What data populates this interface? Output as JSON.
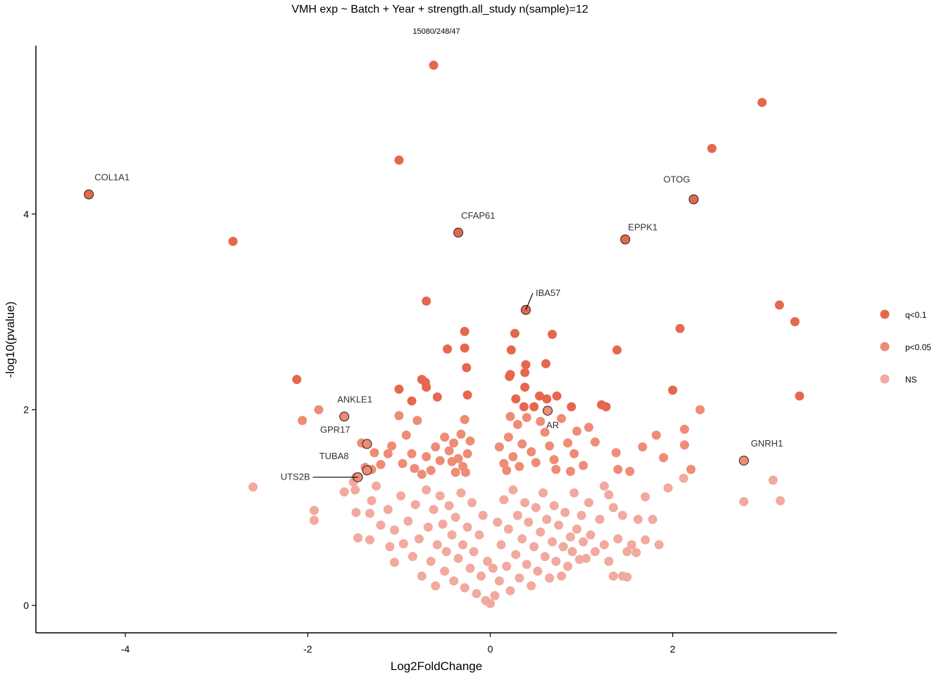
{
  "chart_data": {
    "type": "scatter",
    "title": "VMH exp ~ Batch + Year + strength.all_study n(sample)=12",
    "subtitle": "15080/248/47",
    "xlabel": "Log2FoldChange",
    "ylabel": "-log10(pvalue)",
    "xlim": [
      -4.98,
      3.8
    ],
    "ylim": [
      -0.28,
      5.72
    ],
    "xticks": [
      -4,
      -2,
      0,
      2
    ],
    "yticks": [
      0,
      2,
      4
    ],
    "grid": false,
    "legend_position": "right",
    "colors": {
      "q<0.1": "#E5674E",
      "p<0.05": "#EE8C75",
      "NS": "#F2A99E",
      "outline": "#222222"
    },
    "series": [
      {
        "name": "q<0.1",
        "points": [
          [
            -4.4,
            4.2
          ],
          [
            -2.82,
            3.72
          ],
          [
            -0.62,
            5.52
          ],
          [
            -1.0,
            4.55
          ],
          [
            -0.35,
            3.81
          ],
          [
            -0.7,
            3.11
          ],
          [
            -0.28,
            2.8
          ],
          [
            -0.28,
            2.63
          ],
          [
            -0.47,
            2.62
          ],
          [
            -0.26,
            2.43
          ],
          [
            -0.25,
            2.15
          ],
          [
            -0.58,
            2.13
          ],
          [
            -0.75,
            2.31
          ],
          [
            -0.71,
            2.28
          ],
          [
            -0.7,
            2.23
          ],
          [
            -0.86,
            2.09
          ],
          [
            -2.12,
            2.31
          ],
          [
            -1.0,
            2.21
          ],
          [
            0.27,
            2.78
          ],
          [
            0.39,
            3.02
          ],
          [
            0.68,
            2.77
          ],
          [
            0.61,
            2.47
          ],
          [
            0.23,
            2.61
          ],
          [
            0.39,
            2.46
          ],
          [
            0.38,
            2.38
          ],
          [
            0.21,
            2.34
          ],
          [
            0.22,
            2.36
          ],
          [
            0.38,
            2.23
          ],
          [
            0.54,
            2.14
          ],
          [
            0.73,
            2.14
          ],
          [
            0.28,
            2.11
          ],
          [
            0.62,
            2.11
          ],
          [
            0.48,
            2.03
          ],
          [
            0.37,
            2.03
          ],
          [
            0.89,
            2.03
          ],
          [
            1.22,
            2.05
          ],
          [
            1.27,
            2.03
          ],
          [
            1.39,
            2.61
          ],
          [
            1.48,
            3.74
          ],
          [
            2.23,
            4.15
          ],
          [
            2.43,
            4.67
          ],
          [
            2.98,
            5.14
          ],
          [
            2.08,
            2.83
          ],
          [
            2.0,
            2.2
          ],
          [
            3.17,
            3.07
          ],
          [
            3.34,
            2.9
          ],
          [
            3.39,
            2.14
          ]
        ]
      },
      {
        "name": "p<0.05",
        "points": [
          [
            -1.88,
            2.0
          ],
          [
            -2.06,
            1.89
          ],
          [
            -1.37,
            1.65
          ],
          [
            -1.41,
            1.66
          ],
          [
            -1.27,
            1.56
          ],
          [
            -1.37,
            1.41
          ],
          [
            -1.47,
            1.31
          ],
          [
            -1.3,
            1.39
          ],
          [
            -1.2,
            1.44
          ],
          [
            -1.0,
            1.94
          ],
          [
            -0.8,
            1.89
          ],
          [
            -0.92,
            1.74
          ],
          [
            -1.08,
            1.63
          ],
          [
            -1.12,
            1.55
          ],
          [
            -0.83,
            1.4
          ],
          [
            -0.86,
            1.55
          ],
          [
            -0.96,
            1.45
          ],
          [
            -0.6,
            1.62
          ],
          [
            -0.5,
            1.72
          ],
          [
            -0.45,
            1.58
          ],
          [
            -0.4,
            1.66
          ],
          [
            -0.35,
            1.5
          ],
          [
            -0.32,
            1.75
          ],
          [
            -0.28,
            1.9
          ],
          [
            -0.25,
            1.55
          ],
          [
            -0.22,
            1.68
          ],
          [
            -0.3,
            1.42
          ],
          [
            -0.42,
            1.47
          ],
          [
            -0.55,
            1.48
          ],
          [
            -0.65,
            1.38
          ],
          [
            -0.7,
            1.52
          ],
          [
            -0.75,
            1.34
          ],
          [
            -0.38,
            1.36
          ],
          [
            -0.27,
            1.36
          ],
          [
            0.1,
            1.62
          ],
          [
            0.15,
            1.45
          ],
          [
            0.2,
            1.72
          ],
          [
            0.25,
            1.52
          ],
          [
            0.3,
            1.85
          ],
          [
            0.35,
            1.65
          ],
          [
            0.4,
            1.92
          ],
          [
            0.45,
            1.57
          ],
          [
            0.22,
            1.93
          ],
          [
            0.18,
            1.38
          ],
          [
            0.5,
            1.46
          ],
          [
            0.55,
            1.88
          ],
          [
            0.6,
            1.77
          ],
          [
            0.65,
            1.63
          ],
          [
            0.7,
            1.49
          ],
          [
            0.78,
            1.91
          ],
          [
            0.85,
            1.66
          ],
          [
            0.92,
            1.55
          ],
          [
            0.95,
            1.78
          ],
          [
            1.02,
            1.43
          ],
          [
            1.08,
            1.82
          ],
          [
            1.15,
            1.67
          ],
          [
            0.88,
            1.37
          ],
          [
            0.72,
            1.39
          ],
          [
            0.32,
            1.42
          ],
          [
            1.38,
            1.56
          ],
          [
            1.4,
            1.39
          ],
          [
            1.53,
            1.37
          ],
          [
            1.67,
            1.62
          ],
          [
            1.82,
            1.74
          ],
          [
            1.9,
            1.51
          ],
          [
            2.13,
            1.8
          ],
          [
            2.13,
            1.64
          ],
          [
            2.3,
            2.0
          ],
          [
            2.2,
            1.39
          ]
        ]
      },
      {
        "name": "NS",
        "points": [
          [
            -2.6,
            1.21
          ],
          [
            -1.93,
            0.97
          ],
          [
            -1.93,
            0.87
          ],
          [
            -1.6,
            1.16
          ],
          [
            -1.48,
            1.18
          ],
          [
            -1.5,
            1.26
          ],
          [
            -1.47,
            0.95
          ],
          [
            -1.45,
            0.69
          ],
          [
            -1.32,
            0.67
          ],
          [
            -1.32,
            0.94
          ],
          [
            -1.3,
            1.07
          ],
          [
            -1.25,
            1.22
          ],
          [
            -1.2,
            0.82
          ],
          [
            -1.12,
            0.98
          ],
          [
            -1.1,
            0.6
          ],
          [
            -1.05,
            0.77
          ],
          [
            -1.05,
            0.44
          ],
          [
            -0.98,
            1.12
          ],
          [
            -0.95,
            0.63
          ],
          [
            -0.9,
            0.86
          ],
          [
            -0.85,
            0.5
          ],
          [
            -0.82,
            1.03
          ],
          [
            -0.78,
            0.68
          ],
          [
            -0.75,
            0.3
          ],
          [
            -0.7,
            1.18
          ],
          [
            -0.68,
            0.8
          ],
          [
            -0.65,
            0.45
          ],
          [
            -0.62,
            0.98
          ],
          [
            -0.6,
            0.2
          ],
          [
            -0.58,
            0.62
          ],
          [
            -0.55,
            1.12
          ],
          [
            -0.52,
            0.83
          ],
          [
            -0.5,
            0.35
          ],
          [
            -0.48,
            0.55
          ],
          [
            -0.45,
            1.02
          ],
          [
            -0.42,
            0.72
          ],
          [
            -0.4,
            0.25
          ],
          [
            -0.38,
            0.9
          ],
          [
            -0.35,
            0.48
          ],
          [
            -0.32,
            1.15
          ],
          [
            -0.3,
            0.62
          ],
          [
            -0.28,
            0.18
          ],
          [
            -0.25,
            0.8
          ],
          [
            -0.22,
            0.38
          ],
          [
            -0.2,
            1.05
          ],
          [
            -0.18,
            0.55
          ],
          [
            -0.15,
            0.12
          ],
          [
            -0.12,
            0.72
          ],
          [
            -0.1,
            0.3
          ],
          [
            -0.08,
            0.92
          ],
          [
            -0.05,
            0.05
          ],
          [
            -0.03,
            0.45
          ],
          [
            0.0,
            0.02
          ],
          [
            0.03,
            0.38
          ],
          [
            0.05,
            0.1
          ],
          [
            0.08,
            0.85
          ],
          [
            0.1,
            0.25
          ],
          [
            0.12,
            0.62
          ],
          [
            0.15,
            1.08
          ],
          [
            0.18,
            0.4
          ],
          [
            0.2,
            0.78
          ],
          [
            0.22,
            0.15
          ],
          [
            0.25,
            1.18
          ],
          [
            0.28,
            0.52
          ],
          [
            0.3,
            0.92
          ],
          [
            0.32,
            0.28
          ],
          [
            0.35,
            0.68
          ],
          [
            0.38,
            1.05
          ],
          [
            0.4,
            0.42
          ],
          [
            0.42,
            0.85
          ],
          [
            0.45,
            0.2
          ],
          [
            0.48,
            0.6
          ],
          [
            0.5,
            1.0
          ],
          [
            0.52,
            0.35
          ],
          [
            0.55,
            0.75
          ],
          [
            0.58,
            1.15
          ],
          [
            0.6,
            0.5
          ],
          [
            0.62,
            0.88
          ],
          [
            0.65,
            0.28
          ],
          [
            0.68,
            0.65
          ],
          [
            0.7,
            1.02
          ],
          [
            0.72,
            0.45
          ],
          [
            0.75,
            0.82
          ],
          [
            0.78,
            0.3
          ],
          [
            0.8,
            0.6
          ],
          [
            0.82,
            0.95
          ],
          [
            0.85,
            0.4
          ],
          [
            0.88,
            0.7
          ],
          [
            0.9,
            0.55
          ],
          [
            0.92,
            1.15
          ],
          [
            0.95,
            0.78
          ],
          [
            0.98,
            0.47
          ],
          [
            1.0,
            0.92
          ],
          [
            1.02,
            0.65
          ],
          [
            1.05,
            0.48
          ],
          [
            1.08,
            1.05
          ],
          [
            1.1,
            0.72
          ],
          [
            1.15,
            0.55
          ],
          [
            1.2,
            0.88
          ],
          [
            1.25,
            0.62
          ],
          [
            1.3,
            0.45
          ],
          [
            1.35,
            1.0
          ],
          [
            1.4,
            0.68
          ],
          [
            1.45,
            0.92
          ],
          [
            1.5,
            0.55
          ],
          [
            1.62,
            0.88
          ],
          [
            1.7,
            1.11
          ],
          [
            1.78,
            0.88
          ],
          [
            1.7,
            0.67
          ],
          [
            1.5,
            0.29
          ],
          [
            1.55,
            0.62
          ],
          [
            1.6,
            0.54
          ],
          [
            1.45,
            0.3
          ],
          [
            1.35,
            0.3
          ],
          [
            1.3,
            1.13
          ],
          [
            1.25,
            1.22
          ],
          [
            1.85,
            0.62
          ],
          [
            1.95,
            1.2
          ],
          [
            2.12,
            1.3
          ],
          [
            2.78,
            1.06
          ],
          [
            3.1,
            1.28
          ],
          [
            3.18,
            1.07
          ]
        ]
      }
    ],
    "highlighted_genes": [
      {
        "gene": "COL1A1",
        "x": -4.4,
        "y": 4.2,
        "group": "q<0.1"
      },
      {
        "gene": "CFAP61",
        "x": -0.35,
        "y": 3.81,
        "group": "q<0.1"
      },
      {
        "gene": "OTOG",
        "x": 2.23,
        "y": 4.15,
        "group": "q<0.1"
      },
      {
        "gene": "EPPK1",
        "x": 1.48,
        "y": 3.74,
        "group": "q<0.1"
      },
      {
        "gene": "IBA57",
        "x": 0.39,
        "y": 3.02,
        "group": "q<0.1"
      },
      {
        "gene": "AR",
        "x": 0.63,
        "y": 1.99,
        "group": "p<0.05"
      },
      {
        "gene": "ANKLE1",
        "x": -1.6,
        "y": 1.93,
        "group": "p<0.05"
      },
      {
        "gene": "GPR17",
        "x": -1.35,
        "y": 1.65,
        "group": "p<0.05"
      },
      {
        "gene": "TUBA8",
        "x": -1.35,
        "y": 1.38,
        "group": "p<0.05"
      },
      {
        "gene": "UTS2B",
        "x": -1.45,
        "y": 1.31,
        "group": "p<0.05"
      },
      {
        "gene": "GNRH1",
        "x": 2.78,
        "y": 1.48,
        "group": "p<0.05"
      }
    ]
  }
}
